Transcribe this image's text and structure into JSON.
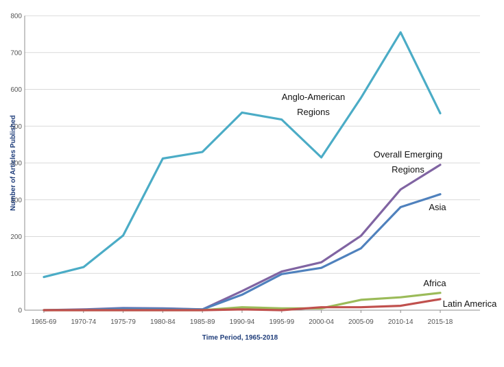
{
  "chart_data": {
    "type": "line",
    "title": "",
    "xlabel": "Time Period, 1965-2018",
    "ylabel": "Number of Articles Published",
    "ylim": [
      0,
      800
    ],
    "yticks": [
      0,
      100,
      200,
      300,
      400,
      500,
      600,
      700,
      800
    ],
    "grid": "horizontal",
    "legend": "inline labels",
    "categories": [
      "1965-69",
      "1970-74",
      "1975-79",
      "1980-84",
      "1985-89",
      "1990-94",
      "1995-99",
      "2000-04",
      "2005-09",
      "2010-14",
      "2015-18"
    ],
    "series": [
      {
        "name": "Anglo-American Regions",
        "label_lines": [
          "Anglo-American",
          "Regions"
        ],
        "color": "#4bacc6",
        "values": [
          90,
          117,
          203,
          412,
          430,
          537,
          518,
          415,
          577,
          755,
          535
        ]
      },
      {
        "name": "Overall Emerging Regions",
        "label_lines": [
          "Overall Emerging",
          "Regions"
        ],
        "color": "#8064a2",
        "values": [
          0,
          2,
          6,
          5,
          2,
          52,
          105,
          130,
          202,
          328,
          395
        ]
      },
      {
        "name": "Asia",
        "label_lines": [
          "Asia"
        ],
        "color": "#4f81bd",
        "values": [
          0,
          1,
          5,
          4,
          2,
          42,
          98,
          115,
          168,
          280,
          315
        ]
      },
      {
        "name": "Africa",
        "label_lines": [
          "Africa"
        ],
        "color": "#9bbb59",
        "values": [
          0,
          0,
          0,
          0,
          0,
          8,
          5,
          5,
          28,
          35,
          47
        ]
      },
      {
        "name": "Latin America",
        "label_lines": [
          "Latin America"
        ],
        "color": "#c0504d",
        "values": [
          0,
          0,
          0,
          0,
          0,
          2,
          0,
          8,
          8,
          12,
          30
        ]
      }
    ]
  }
}
